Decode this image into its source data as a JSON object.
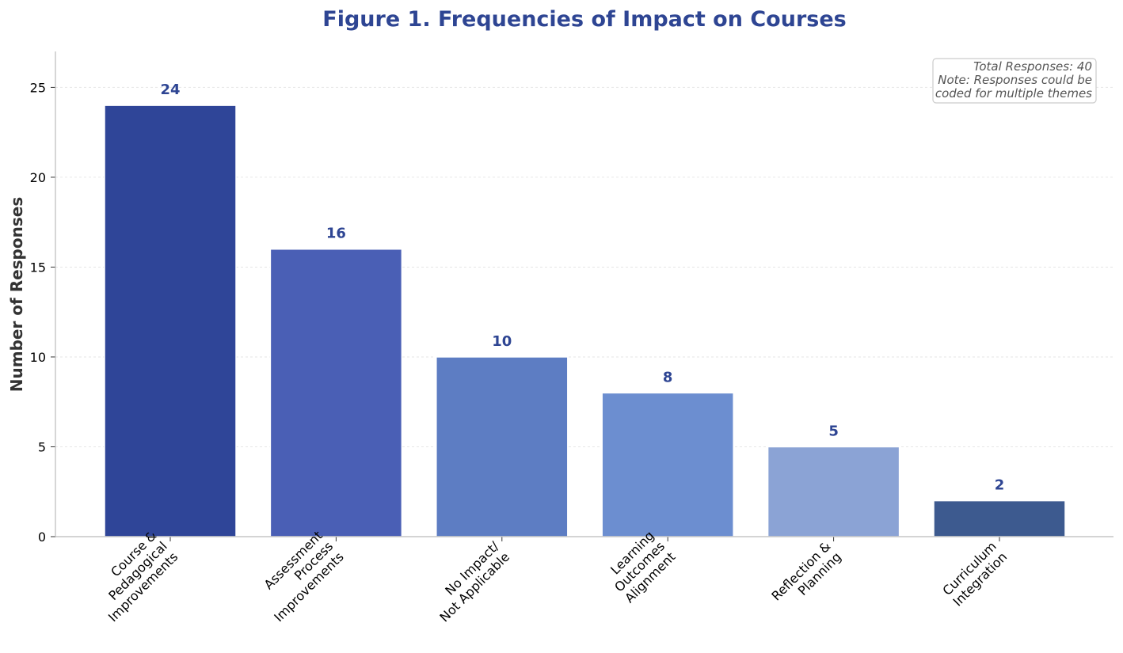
{
  "chart_data": {
    "type": "bar",
    "title": "Figure 1. Frequencies of Impact on Courses",
    "xlabel": "",
    "ylabel": "Number of Responses",
    "ylim": [
      0,
      27
    ],
    "yticks": [
      0,
      5,
      10,
      15,
      20,
      25
    ],
    "grid": "horizontal-dashed",
    "categories": [
      [
        "Course &",
        "Pedagogical",
        "Improvements"
      ],
      [
        "Assessment",
        "Process",
        "Improvements"
      ],
      [
        "No Impact/",
        "Not Applicable"
      ],
      [
        "Learning",
        "Outcomes",
        "Alignment"
      ],
      [
        "Reflection &",
        "Planning"
      ],
      [
        "Curriculum",
        "Integration"
      ]
    ],
    "values": [
      24,
      16,
      10,
      8,
      5,
      2
    ],
    "colors": [
      "#2f4598",
      "#4a5fb5",
      "#5d7dc3",
      "#6c8ed0",
      "#8ba3d5",
      "#3d5a8f"
    ],
    "annotation": {
      "lines": [
        "Total Responses: 40",
        "Note: Responses could be",
        "coded for multiple themes"
      ],
      "placement": "top-right"
    }
  }
}
